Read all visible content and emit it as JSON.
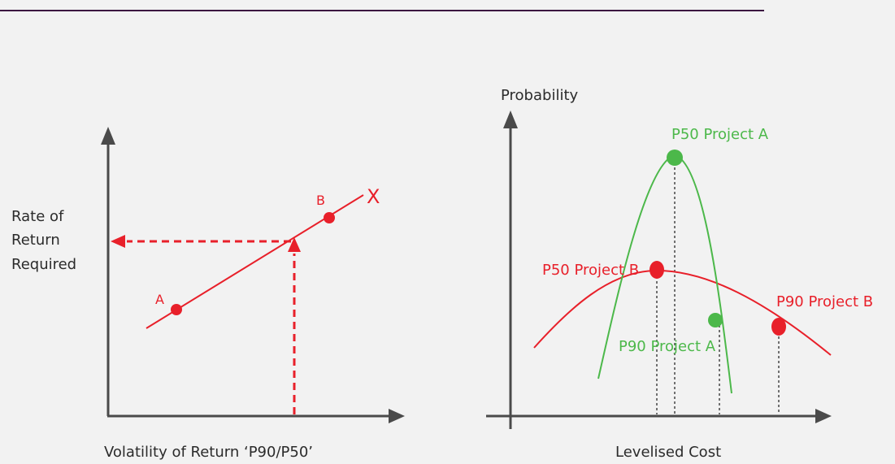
{
  "colors": {
    "background": "#f2f2f2",
    "header_rule": "#3b1740",
    "axis": "#4a4a4a",
    "red": "#e8202a",
    "green": "#4cb84a",
    "text": "#2b2b2b",
    "guide": "#444444"
  },
  "left_chart": {
    "ylabel_lines": [
      "Rate of",
      "Return",
      "Required"
    ],
    "xlabel": "Volatility of Return ‘P90/P50’",
    "line_label": "X",
    "point_a_label": "A",
    "point_b_label": "B"
  },
  "right_chart": {
    "ylabel": "Probability",
    "xlabel": "Levelised Cost",
    "p50_a_label": "P50 Project A",
    "p90_a_label": "P90 Project A",
    "p50_b_label": "P50 Project B",
    "p90_b_label": "P90 Project B"
  }
}
